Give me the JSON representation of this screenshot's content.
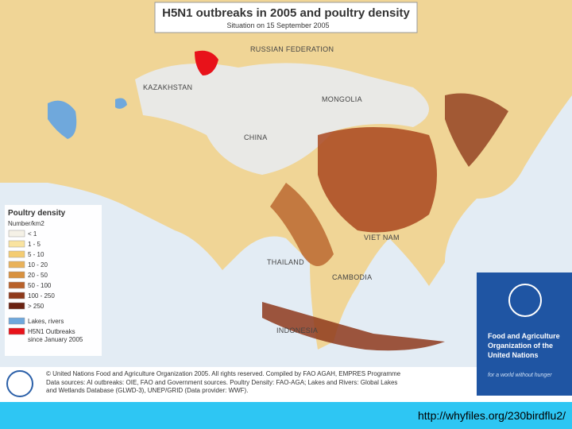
{
  "map": {
    "title": "H5N1 outbreaks in 2005 and poultry density",
    "subtitle": "Situation on 15 September 2005",
    "places": [
      "RUSSIAN FEDERATION",
      "KAZAKHSTAN",
      "MONGOLIA",
      "CHINA",
      "VIET NAM",
      "THAILAND",
      "CAMBODIA",
      "INDONESIA"
    ],
    "legend": {
      "title": "Poultry density",
      "unit": "Number/km2",
      "items": [
        {
          "label": "< 1",
          "color": "#f5f1e6"
        },
        {
          "label": "1 - 5",
          "color": "#f9e3a0"
        },
        {
          "label": "5 - 10",
          "color": "#f4cc72"
        },
        {
          "label": "10 - 20",
          "color": "#e9b25a"
        },
        {
          "label": "20 - 50",
          "color": "#d8913f"
        },
        {
          "label": "50 - 100",
          "color": "#b8612a"
        },
        {
          "label": "100 - 250",
          "color": "#8e3a1c"
        },
        {
          "label": "> 250",
          "color": "#6a2212"
        },
        {
          "label": "Lakes, rivers",
          "color": "#6fa8dc"
        },
        {
          "label": "H5N1 Outbreaks since January 2005",
          "color": "#e8121a"
        }
      ]
    }
  },
  "footer": {
    "credit": [
      "© United Nations Food and Agriculture Organization 2005. All rights reserved. Compiled by FAO AGAH, EMPRES Programme",
      "Data sources: AI outbreaks: OIE, FAO and Government sources. Poultry Density: FAO-AGA; Lakes and Rivers: Global Lakes",
      "and Wetlands Database (GLWD-3), UNEP/GRID (Data provider: WWF)."
    ]
  },
  "fao": {
    "name": "Food and Agriculture Organization of the United Nations",
    "motto": "for a world without hunger"
  },
  "url": "http://whyfiles.org/230birdflu2/"
}
